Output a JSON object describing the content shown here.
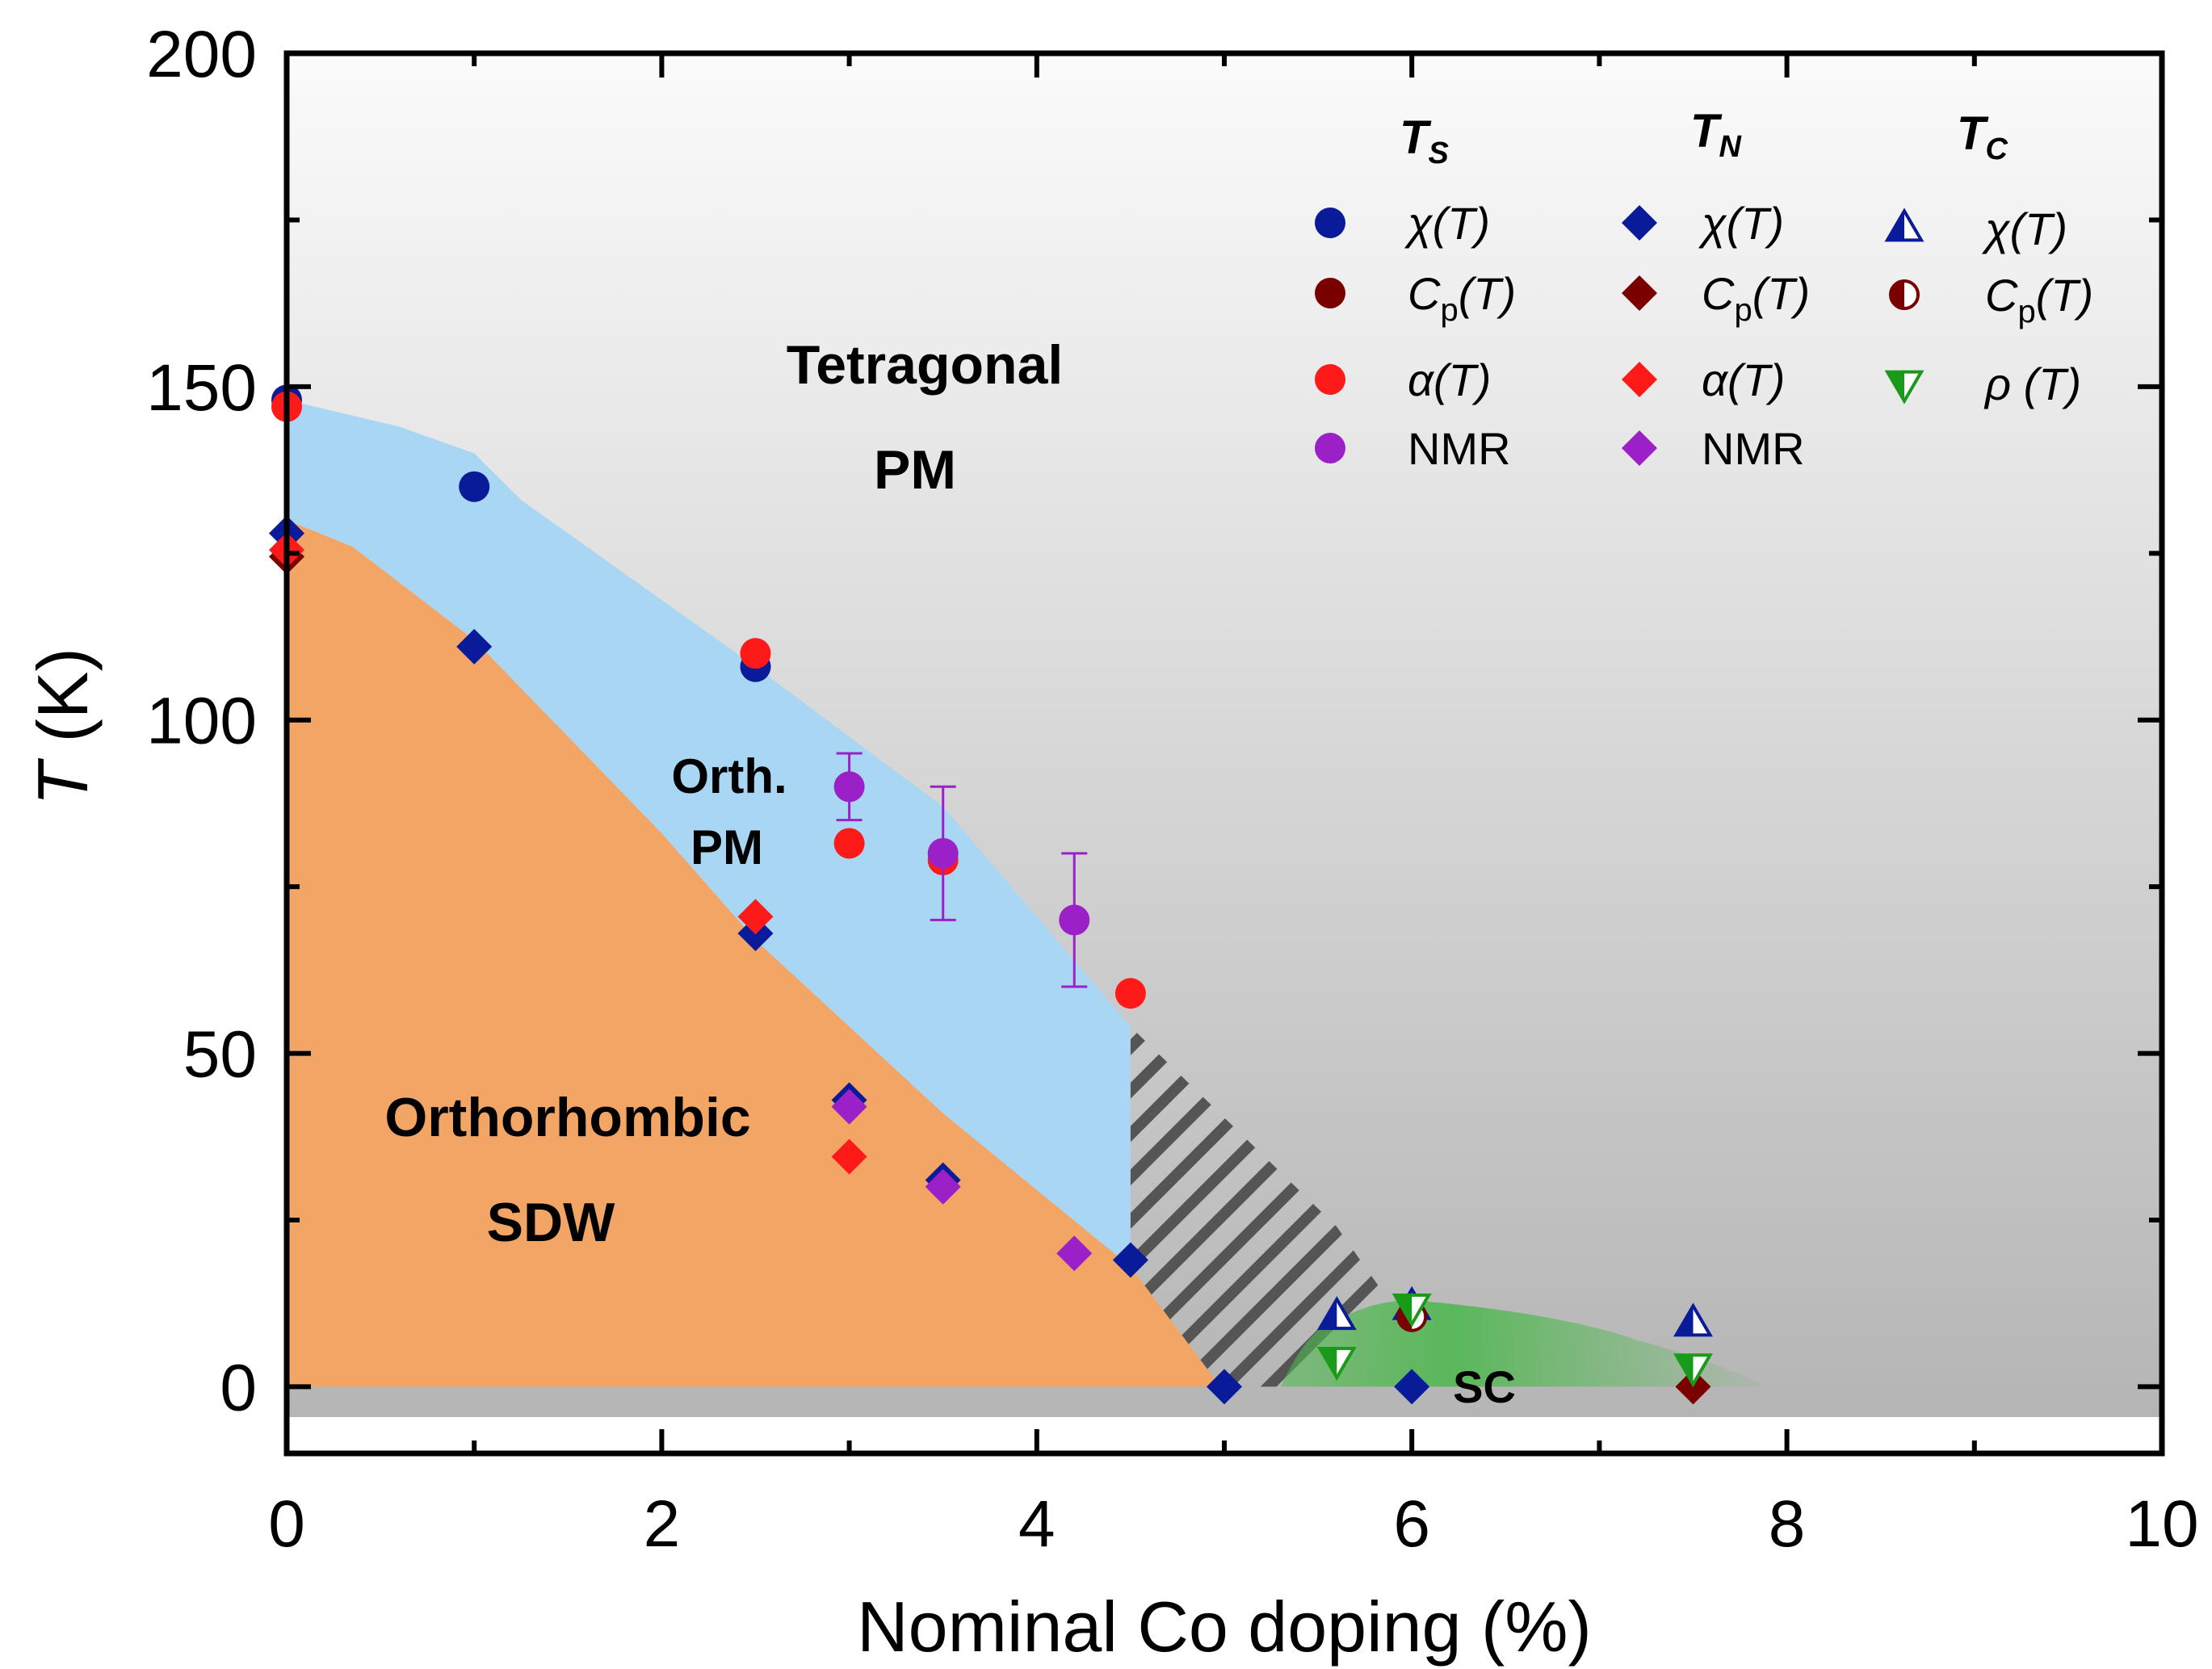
{
  "chart_data": {
    "type": "scatter",
    "xlabel": "Nominal Co doping (%)",
    "ylabel": {
      "symbol": "T",
      "unit": " (K)"
    },
    "xlim": [
      0,
      10
    ],
    "ylim": [
      -10,
      200
    ],
    "x_ticks": [
      "0",
      "2",
      "4",
      "6",
      "8",
      "10"
    ],
    "y_ticks": [
      "0",
      "50",
      "100",
      "150",
      "200"
    ],
    "regions": {
      "tetragonal": "Tetragonal",
      "tetragonal_pm": "PM",
      "orth": "Orth.",
      "orth_pm": "PM",
      "orthorhombic": "Orthorhombic",
      "sdw": "SDW",
      "sc": "SC"
    },
    "legend": {
      "headers": [
        {
          "main": "T",
          "sub": "S"
        },
        {
          "main": "T",
          "sub": "N"
        },
        {
          "main": "T",
          "sub": "C"
        }
      ],
      "ts": [
        {
          "label": "χ(T)",
          "color": "#0a1b9a"
        },
        {
          "label": "C_p(T)",
          "color": "#7a0000"
        },
        {
          "label": "α(T)",
          "color": "#ff1a1a"
        },
        {
          "label": "NMR",
          "color": "#9b20c8"
        }
      ],
      "tn": [
        {
          "label": "χ(T)",
          "color": "#0a1b9a"
        },
        {
          "label": "C_p(T)",
          "color": "#7a0000"
        },
        {
          "label": "α(T)",
          "color": "#ff1a1a"
        },
        {
          "label": "NMR",
          "color": "#9b20c8"
        }
      ],
      "tc": [
        {
          "label": "χ(T)",
          "color": "#0a1b9a"
        },
        {
          "label": "C_p(T)",
          "color": "#7a0000"
        },
        {
          "label": "ρ (T)",
          "color": "#1a9a1a"
        }
      ]
    },
    "series": [
      {
        "name": "T_S chi(T)",
        "marker": "circle",
        "color": "#0a1b9a",
        "points": [
          [
            0,
            148
          ],
          [
            1,
            135
          ],
          [
            2.5,
            108
          ]
        ]
      },
      {
        "name": "T_S alpha(T)",
        "marker": "circle",
        "color": "#ff1a1a",
        "points": [
          [
            0,
            147
          ],
          [
            2.5,
            110
          ],
          [
            3,
            81.5
          ],
          [
            3.5,
            79
          ],
          [
            4.5,
            59
          ]
        ]
      },
      {
        "name": "T_S NMR",
        "marker": "circle",
        "color": "#9b20c8",
        "points": [
          [
            3,
            90
          ],
          [
            3.5,
            80
          ],
          [
            4.2,
            70
          ]
        ],
        "errors": [
          [
            85,
            95
          ],
          [
            70,
            90
          ],
          [
            60,
            80
          ]
        ]
      },
      {
        "name": "T_N chi(T)",
        "marker": "diamond",
        "color": "#0a1b9a",
        "points": [
          [
            0,
            128
          ],
          [
            1,
            111
          ],
          [
            2.5,
            68
          ],
          [
            3,
            43
          ],
          [
            3.5,
            31
          ],
          [
            4.5,
            19
          ],
          [
            5,
            0
          ],
          [
            6,
            0
          ]
        ]
      },
      {
        "name": "T_N Cp(T)",
        "marker": "diamond",
        "color": "#7a0000",
        "points": [
          [
            0,
            124.5
          ],
          [
            7.5,
            0
          ]
        ]
      },
      {
        "name": "T_N alpha(T)",
        "marker": "diamond",
        "color": "#ff1a1a",
        "points": [
          [
            0,
            125.5
          ],
          [
            2.5,
            70.5
          ],
          [
            3,
            34.5
          ]
        ]
      },
      {
        "name": "T_N NMR",
        "marker": "diamond",
        "color": "#9b20c8",
        "points": [
          [
            3,
            42
          ],
          [
            3.5,
            30
          ],
          [
            4.2,
            20
          ]
        ]
      },
      {
        "name": "T_C chi(T)",
        "marker": "half-triangle-up",
        "color": "#0a1b9a",
        "points": [
          [
            5.6,
            10.5
          ],
          [
            6,
            12
          ],
          [
            7.5,
            9.5
          ]
        ]
      },
      {
        "name": "T_C Cp(T)",
        "marker": "half-circle",
        "color": "#7a0000",
        "points": [
          [
            6,
            10.5
          ]
        ]
      },
      {
        "name": "T_C rho(T)",
        "marker": "half-triangle-down",
        "color": "#1a9a1a",
        "points": [
          [
            5.6,
            4
          ],
          [
            6,
            12
          ],
          [
            7.5,
            3
          ]
        ]
      }
    ],
    "phase_boundaries": {
      "ts_upper": [
        [
          0,
          148
        ],
        [
          0.6,
          144
        ],
        [
          1,
          140
        ],
        [
          1.25,
          133
        ],
        [
          2.5,
          108
        ],
        [
          3.5,
          87
        ],
        [
          4.5,
          54
        ]
      ],
      "tn_lower": [
        [
          0,
          130
        ],
        [
          0.35,
          126
        ],
        [
          1,
          112
        ],
        [
          2,
          83
        ],
        [
          2.5,
          67
        ],
        [
          3.5,
          41
        ],
        [
          4.5,
          18
        ],
        [
          4.98,
          0
        ]
      ],
      "stripe_region": [
        [
          4.5,
          54
        ],
        [
          4.5,
          18
        ],
        [
          4.98,
          0
        ],
        [
          5.3,
          0
        ],
        [
          5.85,
          14
        ],
        [
          5.6,
          24
        ]
      ],
      "sc_dome": [
        [
          5.3,
          0
        ],
        [
          5.6,
          10
        ],
        [
          6.0,
          13
        ],
        [
          7.2,
          7
        ],
        [
          7.9,
          0
        ]
      ]
    },
    "colors": {
      "tetragonal_top": "#fbfbfb",
      "tetragonal_bottom": "#b3b3b3",
      "orth_pm": "#a9d6f3",
      "orthorhombic_sdw": "#f2a565",
      "sc": "#4fb84f",
      "stripe": "#555555"
    }
  }
}
